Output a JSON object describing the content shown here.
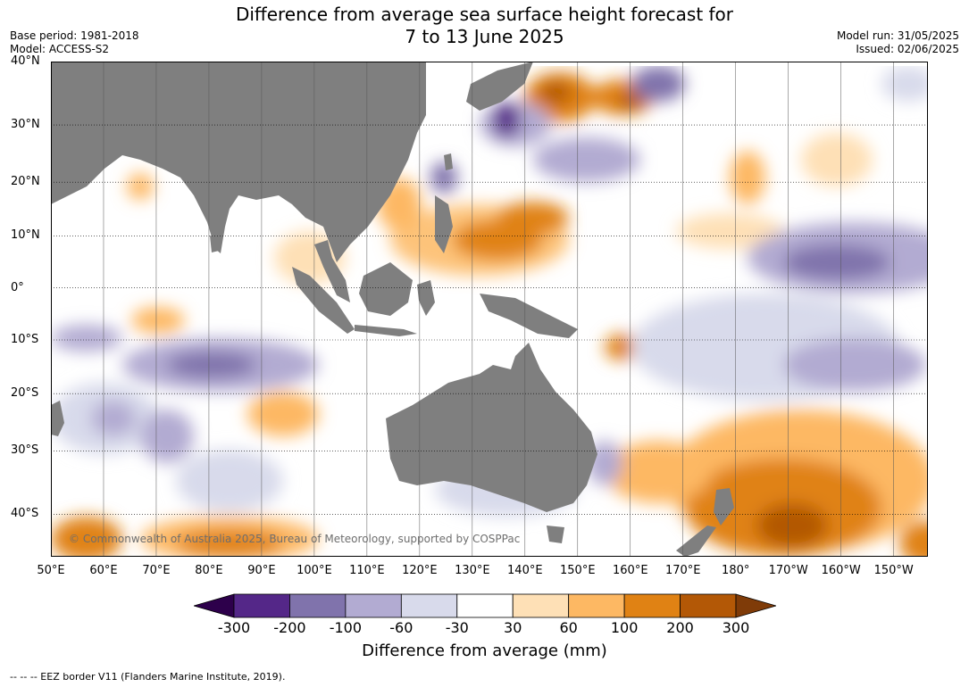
{
  "header": {
    "title_line1": "Difference from average sea surface height forecast for",
    "title_line2": "7 to 13 June 2025",
    "base_period": "Base period: 1981-2018",
    "model": "Model: ACCESS-S2",
    "model_run": "Model run: 31/05/2025",
    "issued": "Issued: 02/06/2025"
  },
  "map": {
    "lat_labels": [
      "40°N",
      "30°N",
      "20°N",
      "10°N",
      "0°",
      "10°S",
      "20°S",
      "30°S",
      "40°S"
    ],
    "lon_labels": [
      "50°E",
      "60°E",
      "70°E",
      "80°E",
      "90°E",
      "100°E",
      "110°E",
      "120°E",
      "130°E",
      "140°E",
      "150°E",
      "160°E",
      "170°E",
      "180°",
      "170°W",
      "160°W",
      "150°W"
    ],
    "lat_range": [
      -46,
      40
    ],
    "lon_range": [
      50,
      216.5
    ],
    "copyright": "© Commonwealth of Australia 2025, Bureau of Meteorology, supported by COSPPac",
    "land_color": "#7f7f7f"
  },
  "colorbar": {
    "tick_labels": [
      "-300",
      "-200",
      "-100",
      "-60",
      "-30",
      "30",
      "60",
      "100",
      "200",
      "300"
    ],
    "colors": [
      "#2d004b",
      "#542788",
      "#8073ac",
      "#b2abd2",
      "#d8daeb",
      "#ffffff",
      "#fee0b6",
      "#fdb863",
      "#e08214",
      "#b35806",
      "#7f3b08"
    ],
    "title": "Difference from average (mm)"
  },
  "footnote": "--  --  -- EEZ border V11 (Flanders Marine Institute, 2019)."
}
